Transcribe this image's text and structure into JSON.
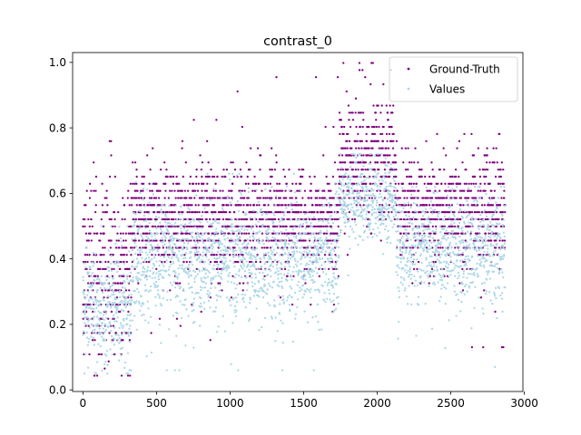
{
  "chart_data": {
    "type": "scatter",
    "title": "contrast_0",
    "xlabel": "",
    "ylabel": "",
    "xlim": [
      -70,
      2990
    ],
    "ylim": [
      -0.005,
      1.03
    ],
    "xticks": [
      0,
      500,
      1000,
      1500,
      2000,
      2500,
      3000
    ],
    "xtick_labels": [
      "0",
      "500",
      "1000",
      "1500",
      "2000",
      "2500",
      "3000"
    ],
    "yticks": [
      0.0,
      0.2,
      0.4,
      0.6,
      0.8,
      1.0
    ],
    "ytick_labels": [
      "0.0",
      "0.2",
      "0.4",
      "0.6",
      "0.8",
      "1.0"
    ],
    "grid": false,
    "legend_position": "upper right",
    "n_points": 2870,
    "series": [
      {
        "name": "Ground-Truth",
        "color": "#800080",
        "marker": "dot",
        "segments": [
          {
            "x_start": 0,
            "x_end": 330,
            "mean": 0.36,
            "spread": 0.14,
            "min": 0.04,
            "max": 0.75
          },
          {
            "x_start": 330,
            "x_end": 1740,
            "mean": 0.52,
            "spread": 0.08,
            "min": 0.13,
            "max": 0.96
          },
          {
            "x_start": 1740,
            "x_end": 2130,
            "mean": 0.7,
            "spread": 0.09,
            "min": 0.42,
            "max": 0.99
          },
          {
            "x_start": 2130,
            "x_end": 2870,
            "mean": 0.54,
            "spread": 0.08,
            "min": 0.13,
            "max": 0.79
          }
        ],
        "quantization": 0.0217
      },
      {
        "name": "Values",
        "color": "#add8e6",
        "marker": "dot",
        "segments": [
          {
            "x_start": 0,
            "x_end": 330,
            "mean": 0.25,
            "spread": 0.09,
            "min": 0.05,
            "max": 0.5
          },
          {
            "x_start": 330,
            "x_end": 1740,
            "mean": 0.4,
            "spread": 0.09,
            "min": 0.06,
            "max": 0.66
          },
          {
            "x_start": 1740,
            "x_end": 2130,
            "mean": 0.58,
            "spread": 0.06,
            "min": 0.35,
            "max": 0.72
          },
          {
            "x_start": 2130,
            "x_end": 2870,
            "mean": 0.43,
            "spread": 0.08,
            "min": 0.07,
            "max": 0.62
          }
        ]
      }
    ]
  }
}
